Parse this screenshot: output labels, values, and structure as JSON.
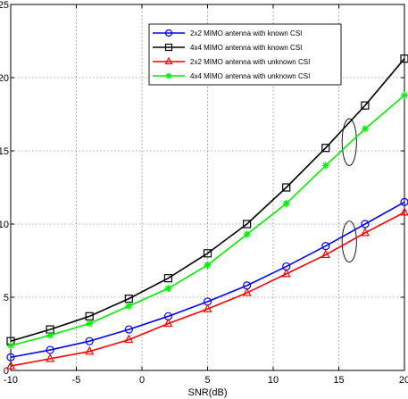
{
  "chart_data": {
    "type": "line",
    "xlabel": "SNR(dB)",
    "ylabel": "",
    "title": "",
    "xlim": [
      -10,
      20
    ],
    "ylim": [
      0,
      25
    ],
    "xticks": [
      -10,
      -5,
      0,
      5,
      10,
      15,
      20
    ],
    "yticks": [
      0,
      5,
      10,
      15,
      20,
      25
    ],
    "grid": true,
    "legend_position": "top-right",
    "x": [
      -10,
      -7,
      -4,
      -1,
      2,
      5,
      8,
      11,
      14,
      17,
      20
    ],
    "series": [
      {
        "name": "2x2 MIMO antenna with known CSI",
        "color": "#0000ff",
        "marker": "circle",
        "values": [
          0.9,
          1.4,
          2.0,
          2.8,
          3.7,
          4.7,
          5.8,
          7.1,
          8.5,
          10.0,
          11.5
        ]
      },
      {
        "name": "4x4 MIMO antenna with known CSI",
        "color": "#000000",
        "marker": "square",
        "values": [
          2.0,
          2.8,
          3.7,
          4.9,
          6.3,
          8.0,
          10.0,
          12.5,
          15.2,
          18.1,
          21.3
        ]
      },
      {
        "name": "2x2 MIMO antenna with unknown CSI",
        "color": "#ff0000",
        "marker": "triangle",
        "values": [
          0.3,
          0.8,
          1.3,
          2.1,
          3.2,
          4.2,
          5.3,
          6.6,
          7.9,
          9.4,
          10.8
        ]
      },
      {
        "name": "4x4 MIMO antenna with unknown CSI",
        "color": "#00ee00",
        "marker": "star",
        "values": [
          1.7,
          2.4,
          3.2,
          4.4,
          5.6,
          7.2,
          9.3,
          11.4,
          14.0,
          16.5,
          18.8
        ]
      }
    ],
    "annotations": [
      {
        "type": "ellipse",
        "cx": 15.8,
        "cy": 15.6,
        "rx": 0.55,
        "ry": 1.6
      },
      {
        "type": "ellipse",
        "cx": 15.8,
        "cy": 8.8,
        "rx": 0.55,
        "ry": 1.4
      }
    ]
  }
}
